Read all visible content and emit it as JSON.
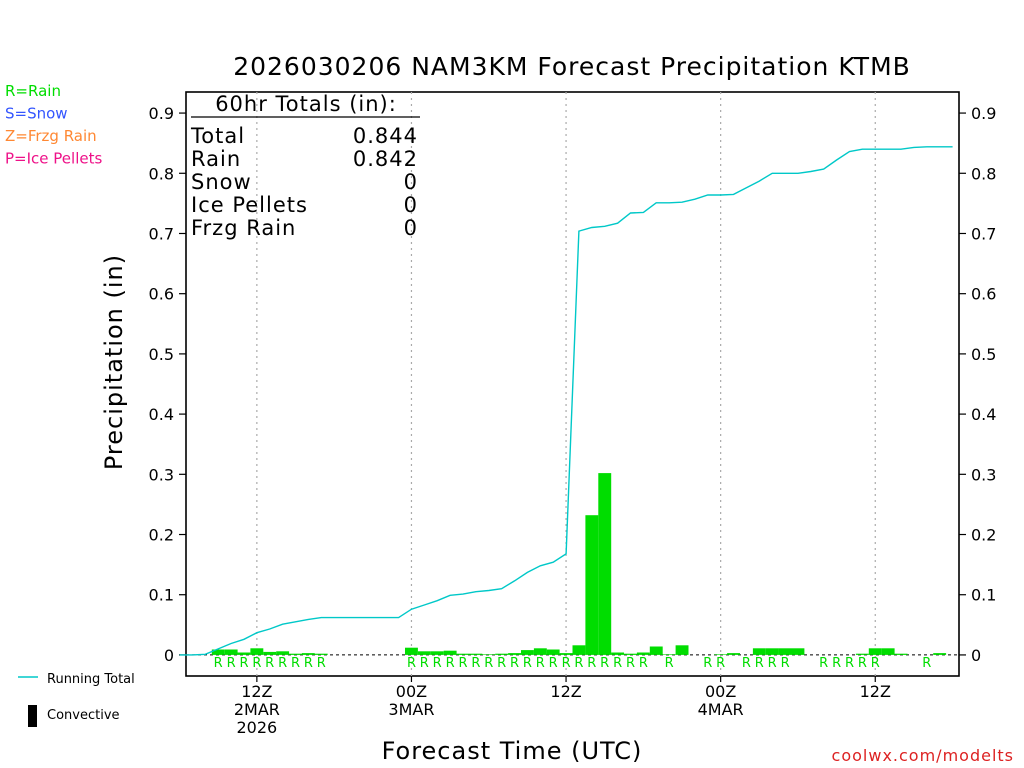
{
  "chart_data": {
    "type": "bar",
    "title": "2026030206 NAM3KM Forecast Precipitation KTMB",
    "xlabel": "Forecast Time (UTC)",
    "ylabel": "Precipitation (in)",
    "ylim": [
      -0.035,
      0.935
    ],
    "yticks": [
      0,
      0.1,
      0.2,
      0.3,
      0.4,
      0.5,
      0.6,
      0.7,
      0.8,
      0.9
    ],
    "ytick_labels": [
      "0",
      "0.1",
      "0.2",
      "0.3",
      "0.4",
      "0.5",
      "0.6",
      "0.7",
      "0.8",
      "0.9"
    ],
    "xlim": [
      6.5,
      66.5
    ],
    "x_units": "forecast hours from 2026-03-02 00Z",
    "x_ticks": [
      {
        "x": 12,
        "lines": [
          "12Z",
          "2MAR",
          "2026"
        ]
      },
      {
        "x": 24,
        "lines": [
          "00Z",
          "3MAR"
        ]
      },
      {
        "x": 36,
        "lines": [
          "12Z"
        ]
      },
      {
        "x": 48,
        "lines": [
          "00Z",
          "4MAR"
        ]
      },
      {
        "x": 60,
        "lines": [
          "12Z"
        ]
      }
    ],
    "series": [
      {
        "name": "Hourly Precipitation (Rain)",
        "kind": "bar",
        "color": "#00dd00",
        "x": [
          9,
          10,
          11,
          12,
          13,
          14,
          15,
          16,
          17,
          18,
          19,
          20,
          21,
          22,
          23,
          24,
          25,
          26,
          27,
          28,
          29,
          30,
          31,
          32,
          33,
          34,
          35,
          36,
          37,
          38,
          39,
          40,
          41,
          42,
          43,
          44,
          45,
          46,
          47,
          48,
          49,
          50,
          51,
          52,
          53,
          54,
          55,
          56,
          57,
          58,
          59,
          60,
          61,
          62,
          63,
          64,
          65,
          66
        ],
        "values": [
          0.009,
          0.009,
          0.004,
          0.011,
          0.005,
          0.006,
          0.002,
          0.003,
          0.002,
          0,
          0,
          0,
          0,
          0,
          0,
          0.012,
          0.006,
          0.006,
          0.007,
          0.002,
          0.002,
          0.001,
          0.002,
          0.003,
          0.008,
          0.011,
          0.009,
          0.003,
          0.016,
          0.232,
          0.302,
          0.004,
          0.002,
          0.004,
          0.014,
          0.001,
          0.016,
          0,
          0,
          0.001,
          0.003,
          0,
          0.011,
          0.011,
          0.011,
          0.011,
          0,
          0,
          0,
          0,
          0.002,
          0.011,
          0.011,
          0.002,
          0,
          0,
          0.003,
          0
        ]
      },
      {
        "name": "Running Total",
        "kind": "line",
        "color": "#00c8c8",
        "x": [
          6,
          7,
          8,
          9,
          10,
          11,
          12,
          13,
          14,
          15,
          16,
          17,
          18,
          19,
          20,
          21,
          22,
          23,
          24,
          25,
          26,
          27,
          28,
          29,
          30,
          31,
          32,
          33,
          34,
          35,
          36,
          37,
          38,
          39,
          40,
          41,
          42,
          43,
          44,
          45,
          46,
          47,
          48,
          49,
          50,
          51,
          52,
          53,
          54,
          55,
          56,
          57,
          58,
          59,
          60,
          61,
          62,
          63,
          64,
          65,
          66
        ],
        "values": [
          0,
          0,
          0.001,
          0.01,
          0.019,
          0.026,
          0.037,
          0.043,
          0.051,
          0.055,
          0.059,
          0.062,
          0.062,
          0.062,
          0.062,
          0.062,
          0.062,
          0.062,
          0.076,
          0.083,
          0.09,
          0.099,
          0.101,
          0.105,
          0.107,
          0.11,
          0.123,
          0.137,
          0.148,
          0.154,
          0.168,
          0.704,
          0.71,
          0.712,
          0.717,
          0.734,
          0.735,
          0.751,
          0.751,
          0.752,
          0.757,
          0.764,
          0.764,
          0.765,
          0.776,
          0.787,
          0.8,
          0.8,
          0.8,
          0.803,
          0.807,
          0.822,
          0.836,
          0.84,
          0.84,
          0.84,
          0.84,
          0.843,
          0.844,
          0.844,
          0.844
        ]
      }
    ],
    "ptype_markers": [
      {
        "x": 9,
        "label": "R"
      },
      {
        "x": 10,
        "label": "R"
      },
      {
        "x": 11,
        "label": "R"
      },
      {
        "x": 12,
        "label": "R"
      },
      {
        "x": 13,
        "label": "R"
      },
      {
        "x": 14,
        "label": "R"
      },
      {
        "x": 15,
        "label": "R"
      },
      {
        "x": 16,
        "label": "R"
      },
      {
        "x": 17,
        "label": "R"
      },
      {
        "x": 24,
        "label": "R"
      },
      {
        "x": 25,
        "label": "R"
      },
      {
        "x": 26,
        "label": "R"
      },
      {
        "x": 27,
        "label": "R"
      },
      {
        "x": 28,
        "label": "R"
      },
      {
        "x": 29,
        "label": "R"
      },
      {
        "x": 30,
        "label": "R"
      },
      {
        "x": 31,
        "label": "R"
      },
      {
        "x": 32,
        "label": "R"
      },
      {
        "x": 33,
        "label": "R"
      },
      {
        "x": 34,
        "label": "R"
      },
      {
        "x": 35,
        "label": "R"
      },
      {
        "x": 36,
        "label": "R"
      },
      {
        "x": 37,
        "label": "R"
      },
      {
        "x": 38,
        "label": "R"
      },
      {
        "x": 39,
        "label": "R"
      },
      {
        "x": 40,
        "label": "R"
      },
      {
        "x": 41,
        "label": "R"
      },
      {
        "x": 42,
        "label": "R"
      },
      {
        "x": 44,
        "label": "R"
      },
      {
        "x": 47,
        "label": "R"
      },
      {
        "x": 48,
        "label": "R"
      },
      {
        "x": 50,
        "label": "R"
      },
      {
        "x": 51,
        "label": "R"
      },
      {
        "x": 52,
        "label": "R"
      },
      {
        "x": 53,
        "label": "R"
      },
      {
        "x": 56,
        "label": "R"
      },
      {
        "x": 57,
        "label": "R"
      },
      {
        "x": 58,
        "label": "R"
      },
      {
        "x": 59,
        "label": "R"
      },
      {
        "x": 60,
        "label": "R"
      },
      {
        "x": 64,
        "label": "R"
      }
    ],
    "totals_box": {
      "heading": "60hr Totals (in):",
      "rows": [
        {
          "label": "Total",
          "value": "0.844"
        },
        {
          "label": "Rain",
          "value": "0.842"
        },
        {
          "label": "Snow",
          "value": "0"
        },
        {
          "label": "Ice Pellets",
          "value": "0"
        },
        {
          "label": "Frzg Rain",
          "value": "0"
        }
      ]
    },
    "ptype_legend": [
      {
        "text": "R=Rain",
        "color": "#00dd00"
      },
      {
        "text": "S=Snow",
        "color": "#3355ff"
      },
      {
        "text": "Z=Frzg Rain",
        "color": "#ff8833"
      },
      {
        "text": "P=Ice Pellets",
        "color": "#ee1188"
      }
    ],
    "series_legend": [
      {
        "text": "Running Total",
        "color": "#00c8c8",
        "symbol": "line"
      },
      {
        "text": "Convective",
        "color": "#000000",
        "symbol": "bar"
      }
    ],
    "credit": "coolwx.com/modelts"
  }
}
